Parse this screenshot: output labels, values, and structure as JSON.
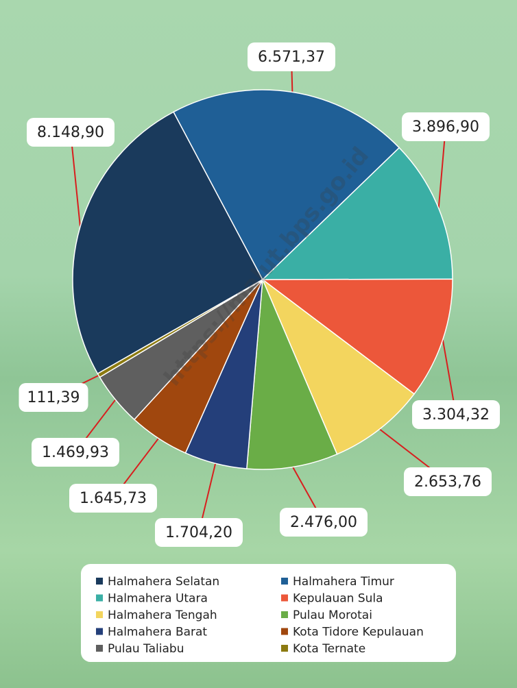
{
  "chart_data": {
    "type": "pie",
    "watermark": "https://malut.bps.go.id",
    "categories": [
      "Halmahera Selatan",
      "Halmahera Timur",
      "Halmahera Utara",
      "Kepulauan Sula",
      "Halmahera Tengah",
      "Pulau Morotai",
      "Halmahera Barat",
      "Kota Tidore Kepulauan",
      "Pulau Taliabu",
      "Kota Ternate"
    ],
    "values": [
      8148.9,
      6571.37,
      3896.9,
      3304.32,
      2653.76,
      2476.0,
      1704.2,
      1645.73,
      1469.93,
      111.39
    ],
    "value_labels": [
      "8.148,90",
      "6.571,37",
      "3.896,90",
      "3.304,32",
      "2.653,76",
      "2.476,00",
      "1.704,20",
      "1.645,73",
      "1.469,93",
      "111,39"
    ],
    "colors": [
      "#1a3a5c",
      "#1f5f96",
      "#3aafa5",
      "#ec573a",
      "#f3d55e",
      "#6aad47",
      "#243f7a",
      "#a0470e",
      "#5f5f5f",
      "#8c7a10"
    ]
  }
}
